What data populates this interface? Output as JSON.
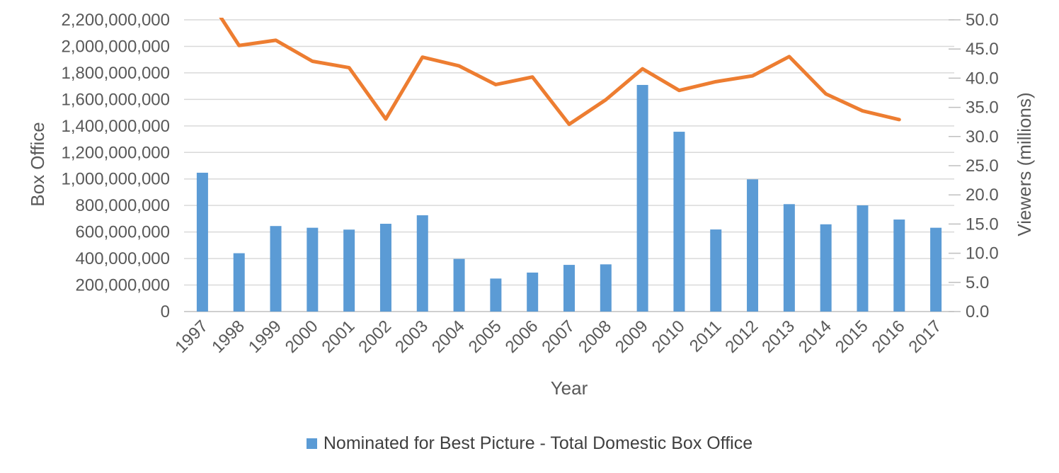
{
  "chart_data": {
    "type": "combo-bar-line",
    "x_categories": [
      "1997",
      "1998",
      "1999",
      "2000",
      "2001",
      "2002",
      "2003",
      "2004",
      "2005",
      "2006",
      "2007",
      "2008",
      "2009",
      "2010",
      "2011",
      "2012",
      "2013",
      "2014",
      "2015",
      "2016",
      "2017"
    ],
    "series": [
      {
        "name": "Nominated for Best Picture - Total Domestic Box Office",
        "type": "bar",
        "axis": "left",
        "color": "#5B9BD5",
        "values": [
          1047000000,
          440000000,
          645000000,
          632000000,
          618000000,
          662000000,
          726000000,
          397000000,
          249000000,
          294000000,
          352000000,
          356000000,
          1709000000,
          1356000000,
          619000000,
          997000000,
          810000000,
          658000000,
          801000000,
          694000000,
          632000000
        ]
      },
      {
        "name": "Viewers (millions)",
        "type": "line",
        "axis": "right",
        "color": "#ED7D31",
        "values": [
          55.3,
          45.6,
          46.5,
          42.9,
          41.8,
          33.0,
          43.6,
          42.1,
          38.9,
          40.2,
          32.1,
          36.3,
          41.6,
          37.9,
          39.4,
          40.4,
          43.7,
          37.3,
          34.4,
          32.9,
          null
        ]
      }
    ],
    "left_axis": {
      "title": "Box Office",
      "min": 0,
      "max": 2200000000,
      "step": 200000000,
      "tick_labels": [
        "0",
        "200,000,000",
        "400,000,000",
        "600,000,000",
        "800,000,000",
        "1,000,000,000",
        "1,200,000,000",
        "1,400,000,000",
        "1,600,000,000",
        "1,800,000,000",
        "2,000,000,000",
        "2,200,000,000"
      ]
    },
    "right_axis": {
      "title": "Viewers (millions)",
      "min": 0,
      "max": 50,
      "step": 5,
      "tick_labels": [
        "0.0",
        "5.0",
        "10.0",
        "15.0",
        "20.0",
        "25.0",
        "30.0",
        "35.0",
        "40.0",
        "45.0",
        "50.0"
      ]
    },
    "x_axis": {
      "title": "Year"
    },
    "legend": {
      "position": "bottom",
      "entries": [
        {
          "label": "Nominated for Best Picture - Total Domestic Box Office",
          "color": "#5B9BD5"
        }
      ]
    },
    "style": {
      "grid_color": "#D9D9D9",
      "axis_line_color": "#BFBFBF",
      "tick_text_color": "#595959",
      "background": "#FFFFFF"
    }
  }
}
